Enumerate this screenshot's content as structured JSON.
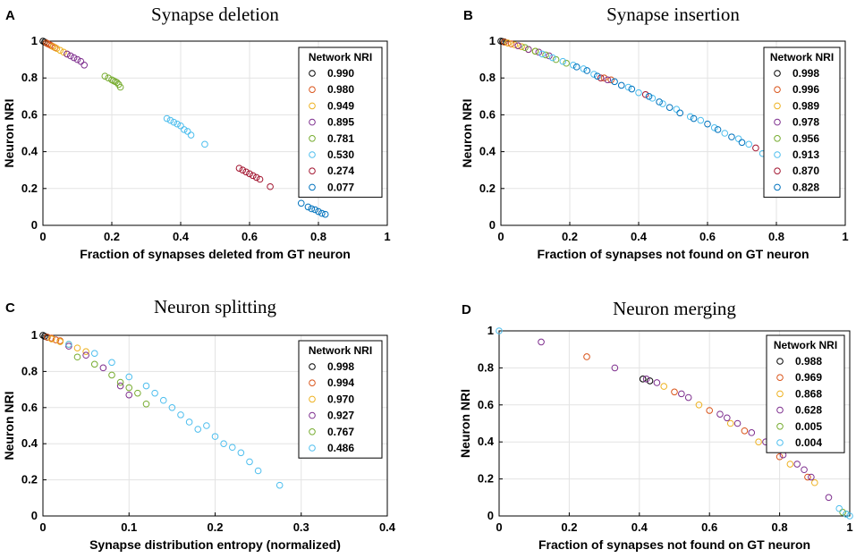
{
  "chart_data": [
    {
      "type": "scatter",
      "panel_letter": "A",
      "title": "Synapse deletion",
      "xlabel": "Fraction of synapses deleted from GT neuron",
      "ylabel": "Neuron NRI",
      "xlim": [
        0,
        1
      ],
      "ylim": [
        0,
        1
      ],
      "xticks": [
        0,
        0.2,
        0.4,
        0.6,
        0.8,
        1
      ],
      "yticks": [
        0,
        0.2,
        0.4,
        0.6,
        0.8,
        1
      ],
      "xtick_labels": [
        "0",
        "0.2",
        "0.4",
        "0.6",
        "0.8",
        "1"
      ],
      "ytick_labels": [
        "0",
        "0.2",
        "0.4",
        "0.6",
        "0.8",
        "1"
      ],
      "grid": true,
      "legend_title": "Network NRI",
      "legend_position": "top-right",
      "series": [
        {
          "name": "0.990",
          "color": "#000000",
          "x": [
            0.0,
            0.005,
            0.01,
            0.015
          ],
          "y": [
            1.0,
            0.995,
            0.99,
            0.985
          ]
        },
        {
          "name": "0.980",
          "color": "#d95319",
          "x": [
            0.01,
            0.015,
            0.02,
            0.025,
            0.03,
            0.035
          ],
          "y": [
            0.99,
            0.985,
            0.98,
            0.975,
            0.97,
            0.965
          ]
        },
        {
          "name": "0.949",
          "color": "#edb120",
          "x": [
            0.03,
            0.04,
            0.05,
            0.06,
            0.07
          ],
          "y": [
            0.97,
            0.96,
            0.95,
            0.94,
            0.93
          ]
        },
        {
          "name": "0.895",
          "color": "#7e2f8e",
          "x": [
            0.07,
            0.08,
            0.09,
            0.1,
            0.11,
            0.12
          ],
          "y": [
            0.93,
            0.92,
            0.91,
            0.9,
            0.89,
            0.87
          ]
        },
        {
          "name": "0.781",
          "color": "#77ac30",
          "x": [
            0.18,
            0.19,
            0.2,
            0.205,
            0.21,
            0.215,
            0.22,
            0.225
          ],
          "y": [
            0.81,
            0.8,
            0.79,
            0.785,
            0.78,
            0.775,
            0.765,
            0.75
          ]
        },
        {
          "name": "0.530",
          "color": "#4dbeee",
          "x": [
            0.36,
            0.37,
            0.38,
            0.39,
            0.4,
            0.41,
            0.42,
            0.43,
            0.47
          ],
          "y": [
            0.58,
            0.57,
            0.56,
            0.55,
            0.54,
            0.52,
            0.51,
            0.49,
            0.44
          ]
        },
        {
          "name": "0.274",
          "color": "#a2142f",
          "x": [
            0.57,
            0.58,
            0.59,
            0.6,
            0.61,
            0.62,
            0.63,
            0.66
          ],
          "y": [
            0.31,
            0.3,
            0.29,
            0.28,
            0.27,
            0.26,
            0.25,
            0.21
          ]
        },
        {
          "name": "0.077",
          "color": "#0072bd",
          "x": [
            0.75,
            0.77,
            0.78,
            0.79,
            0.8,
            0.81,
            0.82
          ],
          "y": [
            0.12,
            0.1,
            0.09,
            0.085,
            0.075,
            0.065,
            0.06
          ]
        }
      ]
    },
    {
      "type": "scatter",
      "panel_letter": "B",
      "title": "Synapse insertion",
      "xlabel": "Fraction of synapses not found on GT neuron",
      "ylabel": "Neuron NRI",
      "xlim": [
        0,
        1
      ],
      "ylim": [
        0,
        1
      ],
      "xticks": [
        0,
        0.2,
        0.4,
        0.6,
        0.8,
        1
      ],
      "yticks": [
        0,
        0.2,
        0.4,
        0.6,
        0.8,
        1
      ],
      "xtick_labels": [
        "0",
        "0.2",
        "0.4",
        "0.6",
        "0.8",
        "1"
      ],
      "ytick_labels": [
        "0",
        "0.2",
        "0.4",
        "0.6",
        "0.8",
        "1"
      ],
      "grid": true,
      "legend_title": "Network NRI",
      "legend_position": "top-right",
      "series": [
        {
          "name": "0.998",
          "color": "#000000",
          "x": [
            0.0,
            0.005,
            0.01
          ],
          "y": [
            1.0,
            0.998,
            0.996
          ]
        },
        {
          "name": "0.996",
          "color": "#d95319",
          "x": [
            0.01,
            0.02,
            0.03,
            0.05,
            0.3,
            0.32
          ],
          "y": [
            0.995,
            0.99,
            0.985,
            0.975,
            0.8,
            0.79
          ]
        },
        {
          "name": "0.989",
          "color": "#edb120",
          "x": [
            0.02,
            0.04,
            0.06,
            0.08,
            0.1
          ],
          "y": [
            0.99,
            0.98,
            0.97,
            0.955,
            0.945
          ]
        },
        {
          "name": "0.978",
          "color": "#7e2f8e",
          "x": [
            0.05,
            0.08,
            0.11,
            0.14,
            0.31
          ],
          "y": [
            0.975,
            0.955,
            0.94,
            0.92,
            0.79
          ]
        },
        {
          "name": "0.956",
          "color": "#77ac30",
          "x": [
            0.07,
            0.1,
            0.13,
            0.16,
            0.19
          ],
          "y": [
            0.965,
            0.945,
            0.925,
            0.9,
            0.88
          ]
        },
        {
          "name": "0.913",
          "color": "#4dbeee",
          "x": [
            0.12,
            0.15,
            0.18,
            0.21,
            0.24,
            0.27,
            0.37,
            0.4,
            0.44,
            0.47,
            0.51,
            0.55,
            0.58,
            0.62,
            0.65,
            0.69,
            0.72,
            0.76
          ],
          "y": [
            0.93,
            0.91,
            0.89,
            0.87,
            0.85,
            0.82,
            0.75,
            0.72,
            0.69,
            0.66,
            0.63,
            0.59,
            0.57,
            0.53,
            0.5,
            0.47,
            0.44,
            0.39
          ]
        },
        {
          "name": "0.870",
          "color": "#a2142f",
          "x": [
            0.29,
            0.42,
            0.74
          ],
          "y": [
            0.8,
            0.71,
            0.42
          ]
        },
        {
          "name": "0.828",
          "color": "#0072bd",
          "x": [
            0.22,
            0.25,
            0.28,
            0.33,
            0.35,
            0.38,
            0.43,
            0.46,
            0.49,
            0.52,
            0.56,
            0.6,
            0.63,
            0.67,
            0.7
          ],
          "y": [
            0.86,
            0.84,
            0.81,
            0.78,
            0.76,
            0.74,
            0.7,
            0.67,
            0.64,
            0.61,
            0.58,
            0.55,
            0.52,
            0.48,
            0.45
          ]
        }
      ]
    },
    {
      "type": "scatter",
      "panel_letter": "C",
      "title": "Neuron splitting",
      "xlabel": "Synapse distribution entropy (normalized)",
      "ylabel": "Neuron NRI",
      "xlim": [
        0,
        0.4
      ],
      "ylim": [
        0,
        1
      ],
      "xticks": [
        0,
        0.1,
        0.2,
        0.3,
        0.4
      ],
      "yticks": [
        0,
        0.2,
        0.4,
        0.6,
        0.8,
        1
      ],
      "xtick_labels": [
        "0",
        "0.1",
        "0.2",
        "0.3",
        "0.4"
      ],
      "ytick_labels": [
        "0",
        "0.2",
        "0.4",
        "0.6",
        "0.8",
        "1"
      ],
      "grid": true,
      "legend_title": "Network NRI",
      "legend_position": "top-right",
      "series": [
        {
          "name": "0.998",
          "color": "#000000",
          "x": [
            0.0,
            0.002,
            0.005
          ],
          "y": [
            1.0,
            0.995,
            0.99
          ]
        },
        {
          "name": "0.994",
          "color": "#d95319",
          "x": [
            0.005,
            0.01,
            0.015,
            0.02
          ],
          "y": [
            0.99,
            0.985,
            0.975,
            0.97
          ]
        },
        {
          "name": "0.970",
          "color": "#edb120",
          "x": [
            0.01,
            0.02,
            0.03,
            0.04,
            0.05
          ],
          "y": [
            0.98,
            0.965,
            0.95,
            0.93,
            0.91
          ]
        },
        {
          "name": "0.927",
          "color": "#7e2f8e",
          "x": [
            0.03,
            0.05,
            0.07,
            0.09,
            0.1
          ],
          "y": [
            0.94,
            0.89,
            0.82,
            0.72,
            0.67
          ]
        },
        {
          "name": "0.767",
          "color": "#77ac30",
          "x": [
            0.04,
            0.06,
            0.08,
            0.09,
            0.1,
            0.11,
            0.12
          ],
          "y": [
            0.88,
            0.84,
            0.78,
            0.74,
            0.71,
            0.68,
            0.62
          ]
        },
        {
          "name": "0.486",
          "color": "#4dbeee",
          "x": [
            0.03,
            0.06,
            0.08,
            0.1,
            0.12,
            0.13,
            0.14,
            0.15,
            0.16,
            0.17,
            0.18,
            0.19,
            0.2,
            0.21,
            0.22,
            0.23,
            0.24,
            0.25,
            0.275
          ],
          "y": [
            0.95,
            0.9,
            0.85,
            0.77,
            0.72,
            0.68,
            0.64,
            0.6,
            0.56,
            0.52,
            0.48,
            0.5,
            0.44,
            0.4,
            0.38,
            0.35,
            0.3,
            0.25,
            0.17
          ]
        }
      ]
    },
    {
      "type": "scatter",
      "panel_letter": "D",
      "title": "Neuron merging",
      "xlabel": "Fraction of synapses not found on GT neuron",
      "ylabel": "Neuron NRI",
      "xlim": [
        0,
        1
      ],
      "ylim": [
        0,
        1
      ],
      "xticks": [
        0,
        0.2,
        0.4,
        0.6,
        0.8,
        1
      ],
      "yticks": [
        0,
        0.2,
        0.4,
        0.6,
        0.8,
        1
      ],
      "xtick_labels": [
        "0",
        "0.2",
        "0.4",
        "0.6",
        "0.8",
        "1"
      ],
      "ytick_labels": [
        "0",
        "0.2",
        "0.4",
        "0.6",
        "0.8",
        "1"
      ],
      "grid": true,
      "legend_title": "Network NRI",
      "legend_position": "top-right",
      "series": [
        {
          "name": "0.988",
          "color": "#000000",
          "x": [
            0.41,
            0.43
          ],
          "y": [
            0.74,
            0.73
          ]
        },
        {
          "name": "0.969",
          "color": "#d95319",
          "x": [
            0.25,
            0.5,
            0.6,
            0.7,
            0.8,
            0.88
          ],
          "y": [
            0.86,
            0.67,
            0.57,
            0.46,
            0.32,
            0.21
          ]
        },
        {
          "name": "0.868",
          "color": "#edb120",
          "x": [
            0.47,
            0.57,
            0.66,
            0.74,
            0.83,
            0.9
          ],
          "y": [
            0.7,
            0.6,
            0.5,
            0.4,
            0.28,
            0.18
          ]
        },
        {
          "name": "0.628",
          "color": "#7e2f8e",
          "x": [
            0.12,
            0.33,
            0.42,
            0.45,
            0.52,
            0.54,
            0.63,
            0.65,
            0.68,
            0.72,
            0.76,
            0.78,
            0.81,
            0.85,
            0.87,
            0.89,
            0.94
          ],
          "y": [
            0.94,
            0.8,
            0.74,
            0.72,
            0.66,
            0.64,
            0.55,
            0.53,
            0.5,
            0.45,
            0.4,
            0.37,
            0.33,
            0.28,
            0.25,
            0.21,
            0.1
          ]
        },
        {
          "name": "0.005",
          "color": "#77ac30",
          "x": [
            0.98,
            0.99
          ],
          "y": [
            0.02,
            0.01
          ]
        },
        {
          "name": "0.004",
          "color": "#4dbeee",
          "x": [
            0.0,
            0.97,
            0.99,
            1.0
          ],
          "y": [
            1.0,
            0.04,
            0.01,
            0.0
          ]
        }
      ]
    }
  ]
}
